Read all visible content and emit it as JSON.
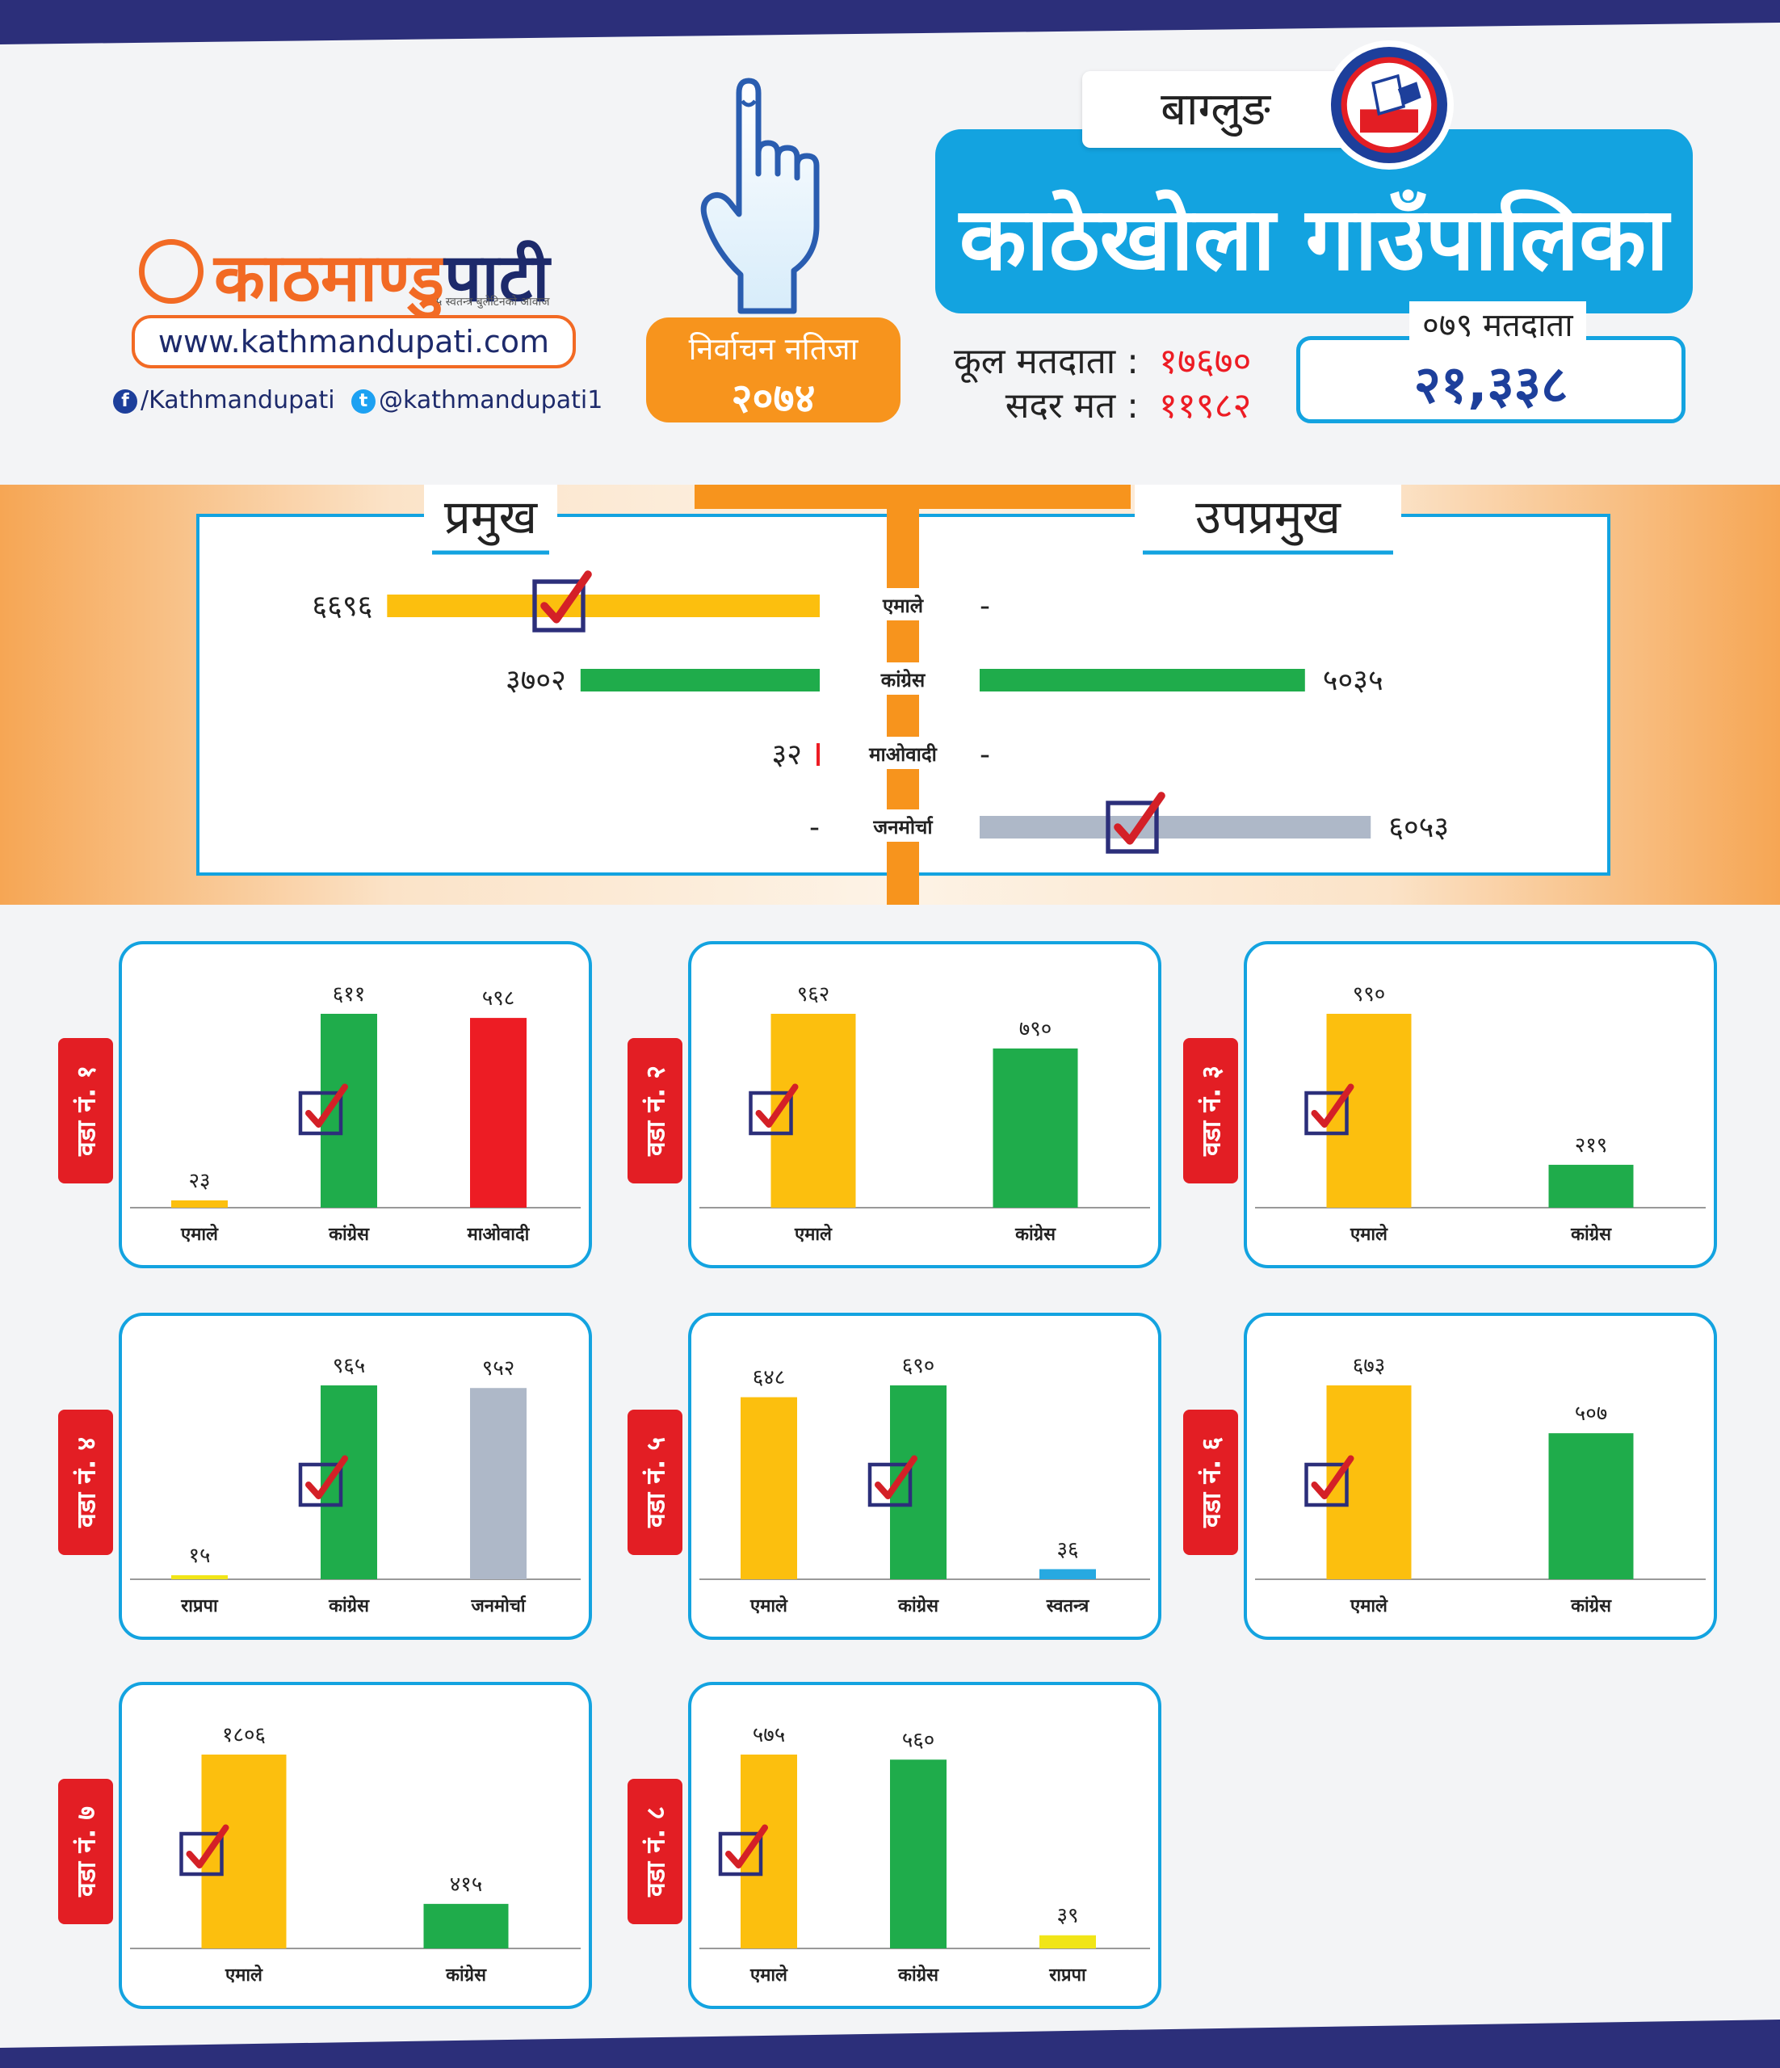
{
  "logo": {
    "name_main": "काठमाण्डु",
    "name_tail": "पाटी",
    "tagline": "५ स्वतन्त्र बुलेटिनको आवाज",
    "website": "www.kathmandupati.com",
    "facebook": "/Kathmandupati",
    "twitter": "@kathmandupati1"
  },
  "badge": {
    "line1": "निर्वाचन नतिजा",
    "line2": "२०७४"
  },
  "header": {
    "district": "बाग्लुङ",
    "municipality": "काठेखोला गाउँपालिका"
  },
  "voters": {
    "total_label": "कूल मतदाता :",
    "total_value": "१७६७०",
    "valid_label": "सदर मत :",
    "valid_value": "११९८२",
    "prev_label": "०७९ मतदाता",
    "prev_value": "२१,३३८"
  },
  "colors": {
    "uml": "#fcbf0e",
    "congress": "#1fac4b",
    "maoist": "#ed1c24",
    "janamorcha": "#aeb8c8",
    "rpp": "#f1e517",
    "independent": "#27a9e1",
    "accent_blue": "#13a3e0",
    "accent_orange": "#f7941d",
    "navy": "#2c2f7a"
  },
  "chart_data": [
    {
      "type": "bar",
      "orientation": "horizontal",
      "title": "प्रमुख",
      "categories": [
        "एमाले",
        "कांग्रेस",
        "माओवादी",
        "जनमोर्चा"
      ],
      "values": [
        6696,
        3702,
        32,
        null
      ],
      "value_labels": [
        "६६९६",
        "३७०२",
        "३२",
        "-"
      ],
      "winner": "एमाले"
    },
    {
      "type": "bar",
      "orientation": "horizontal",
      "title": "उपप्रमुख",
      "categories": [
        "एमाले",
        "कांग्रेस",
        "माओवादी",
        "जनमोर्चा"
      ],
      "values": [
        null,
        5035,
        null,
        6053
      ],
      "value_labels": [
        "-",
        "५०३५",
        "-",
        "६०५३"
      ],
      "winner": "जनमोर्चा"
    },
    {
      "type": "bar",
      "ward": "वडा नं. १",
      "categories": [
        "एमाले",
        "कांग्रेस",
        "माओवादी"
      ],
      "values": [
        23,
        611,
        598
      ],
      "value_labels": [
        "२३",
        "६११",
        "५९८"
      ],
      "winner": "कांग्रेस"
    },
    {
      "type": "bar",
      "ward": "वडा नं. २",
      "categories": [
        "एमाले",
        "कांग्रेस"
      ],
      "values": [
        962,
        790
      ],
      "value_labels": [
        "९६२",
        "७९०"
      ],
      "winner": "एमाले"
    },
    {
      "type": "bar",
      "ward": "वडा नं. ३",
      "categories": [
        "एमाले",
        "कांग्रेस"
      ],
      "values": [
        990,
        219
      ],
      "value_labels": [
        "९९०",
        "२१९"
      ],
      "winner": "एमाले"
    },
    {
      "type": "bar",
      "ward": "वडा नं. ४",
      "categories": [
        "राप्रपा",
        "कांग्रेस",
        "जनमोर्चा"
      ],
      "values": [
        15,
        965,
        952
      ],
      "value_labels": [
        "१५",
        "९६५",
        "९५२"
      ],
      "winner": "कांग्रेस"
    },
    {
      "type": "bar",
      "ward": "वडा नं. ५",
      "categories": [
        "एमाले",
        "कांग्रेस",
        "स्वतन्त्र"
      ],
      "values": [
        648,
        690,
        36
      ],
      "value_labels": [
        "६४८",
        "६९०",
        "३६"
      ],
      "winner": "कांग्रेस"
    },
    {
      "type": "bar",
      "ward": "वडा नं. ६",
      "categories": [
        "एमाले",
        "कांग्रेस"
      ],
      "values": [
        673,
        507
      ],
      "value_labels": [
        "६७३",
        "५०७"
      ],
      "winner": "एमाले"
    },
    {
      "type": "bar",
      "ward": "वडा नं. ७",
      "categories": [
        "एमाले",
        "कांग्रेस"
      ],
      "values": [
        1806,
        415
      ],
      "value_labels": [
        "१८०६",
        "४१५"
      ],
      "winner": "एमाले"
    },
    {
      "type": "bar",
      "ward": "वडा नं. ८",
      "categories": [
        "एमाले",
        "कांग्रेस",
        "राप्रपा"
      ],
      "values": [
        575,
        560,
        39
      ],
      "value_labels": [
        "५७५",
        "५६०",
        "३९"
      ],
      "winner": "एमाले"
    }
  ]
}
